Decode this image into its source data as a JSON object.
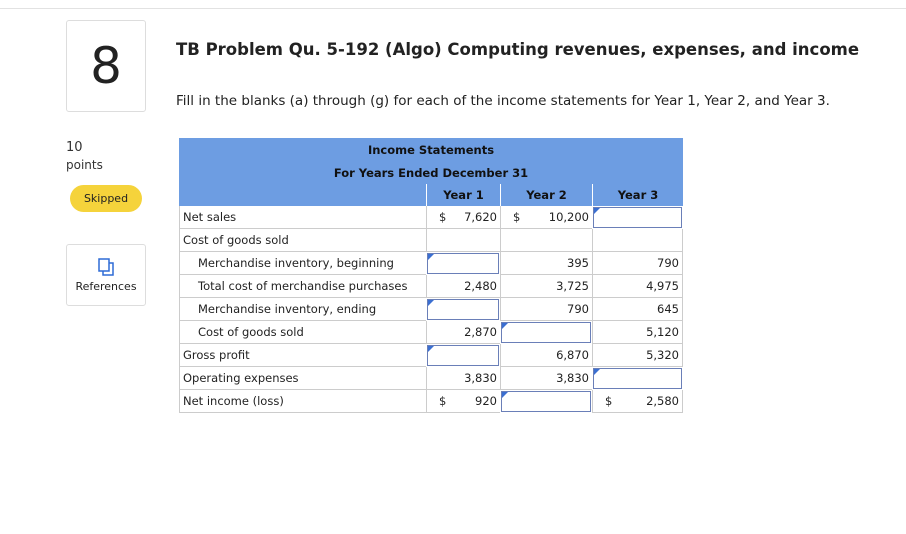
{
  "question": {
    "number": "8",
    "points_value": "10",
    "points_label": "points",
    "status": "Skipped",
    "references": "References"
  },
  "header": {
    "title": "TB Problem Qu. 5-192 (Algo) Computing revenues, expenses, and income",
    "instructions": "Fill in the blanks (a) through (g) for each of the income statements for Year 1, Year 2, and Year 3."
  },
  "table": {
    "title": "Income Statements",
    "subtitle": "For Years Ended December 31",
    "columns": [
      "Year 1",
      "Year 2",
      "Year 3"
    ],
    "rows": [
      {
        "label": "Net sales",
        "cells": [
          {
            "prefix": "$",
            "value": "7,620"
          },
          {
            "prefix": "$",
            "value": "10,200"
          },
          null
        ]
      },
      {
        "label": "Cost of goods sold",
        "cells": []
      },
      {
        "label": "Merchandise inventory, beginning",
        "cells": [
          null,
          "395",
          "790"
        ]
      },
      {
        "label": "Total cost of merchandise purchases",
        "cells": [
          "2,480",
          "3,725",
          "4,975"
        ]
      },
      {
        "label": "Merchandise inventory, ending",
        "cells": [
          null,
          "790",
          "645"
        ]
      },
      {
        "label": "Cost of goods sold",
        "cells": [
          "2,870",
          null,
          "5,120"
        ]
      },
      {
        "label": "Gross profit",
        "cells": [
          null,
          "6,870",
          "5,320"
        ]
      },
      {
        "label": "Operating expenses",
        "cells": [
          "3,830",
          "3,830",
          null
        ]
      },
      {
        "label": "Net income (loss)",
        "cells": [
          {
            "prefix": "$",
            "value": "920"
          },
          null,
          {
            "prefix": "$",
            "value": "2,580"
          }
        ]
      }
    ]
  }
}
